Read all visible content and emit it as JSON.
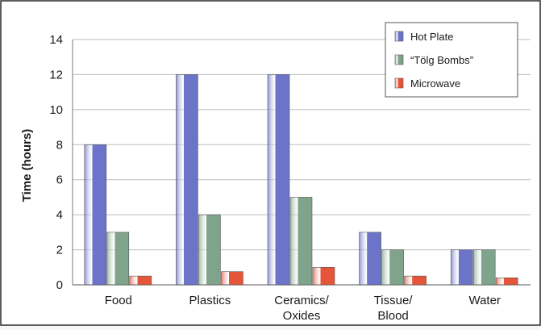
{
  "chart_data": {
    "type": "bar",
    "categories": [
      "Food",
      "Plastics",
      "Ceramics/\nOxides",
      "Tissue/\nBlood",
      "Water"
    ],
    "series": [
      {
        "name": "Hot Plate",
        "values": [
          8,
          12,
          12,
          3,
          2
        ],
        "color": "#6b74c9"
      },
      {
        "name": "“Tölg Bombs”",
        "values": [
          3,
          4,
          5,
          2,
          2
        ],
        "color": "#7fa38b"
      },
      {
        "name": "Microwave",
        "values": [
          0.5,
          0.75,
          1,
          0.5,
          0.4
        ],
        "color": "#e5553a"
      }
    ],
    "title": "",
    "xlabel": "",
    "ylabel": "Time (hours)",
    "ylim": [
      0,
      14
    ],
    "yticks": [
      0,
      2,
      4,
      6,
      8,
      10,
      12,
      14
    ],
    "grid": true,
    "legend_position": "top-right"
  }
}
